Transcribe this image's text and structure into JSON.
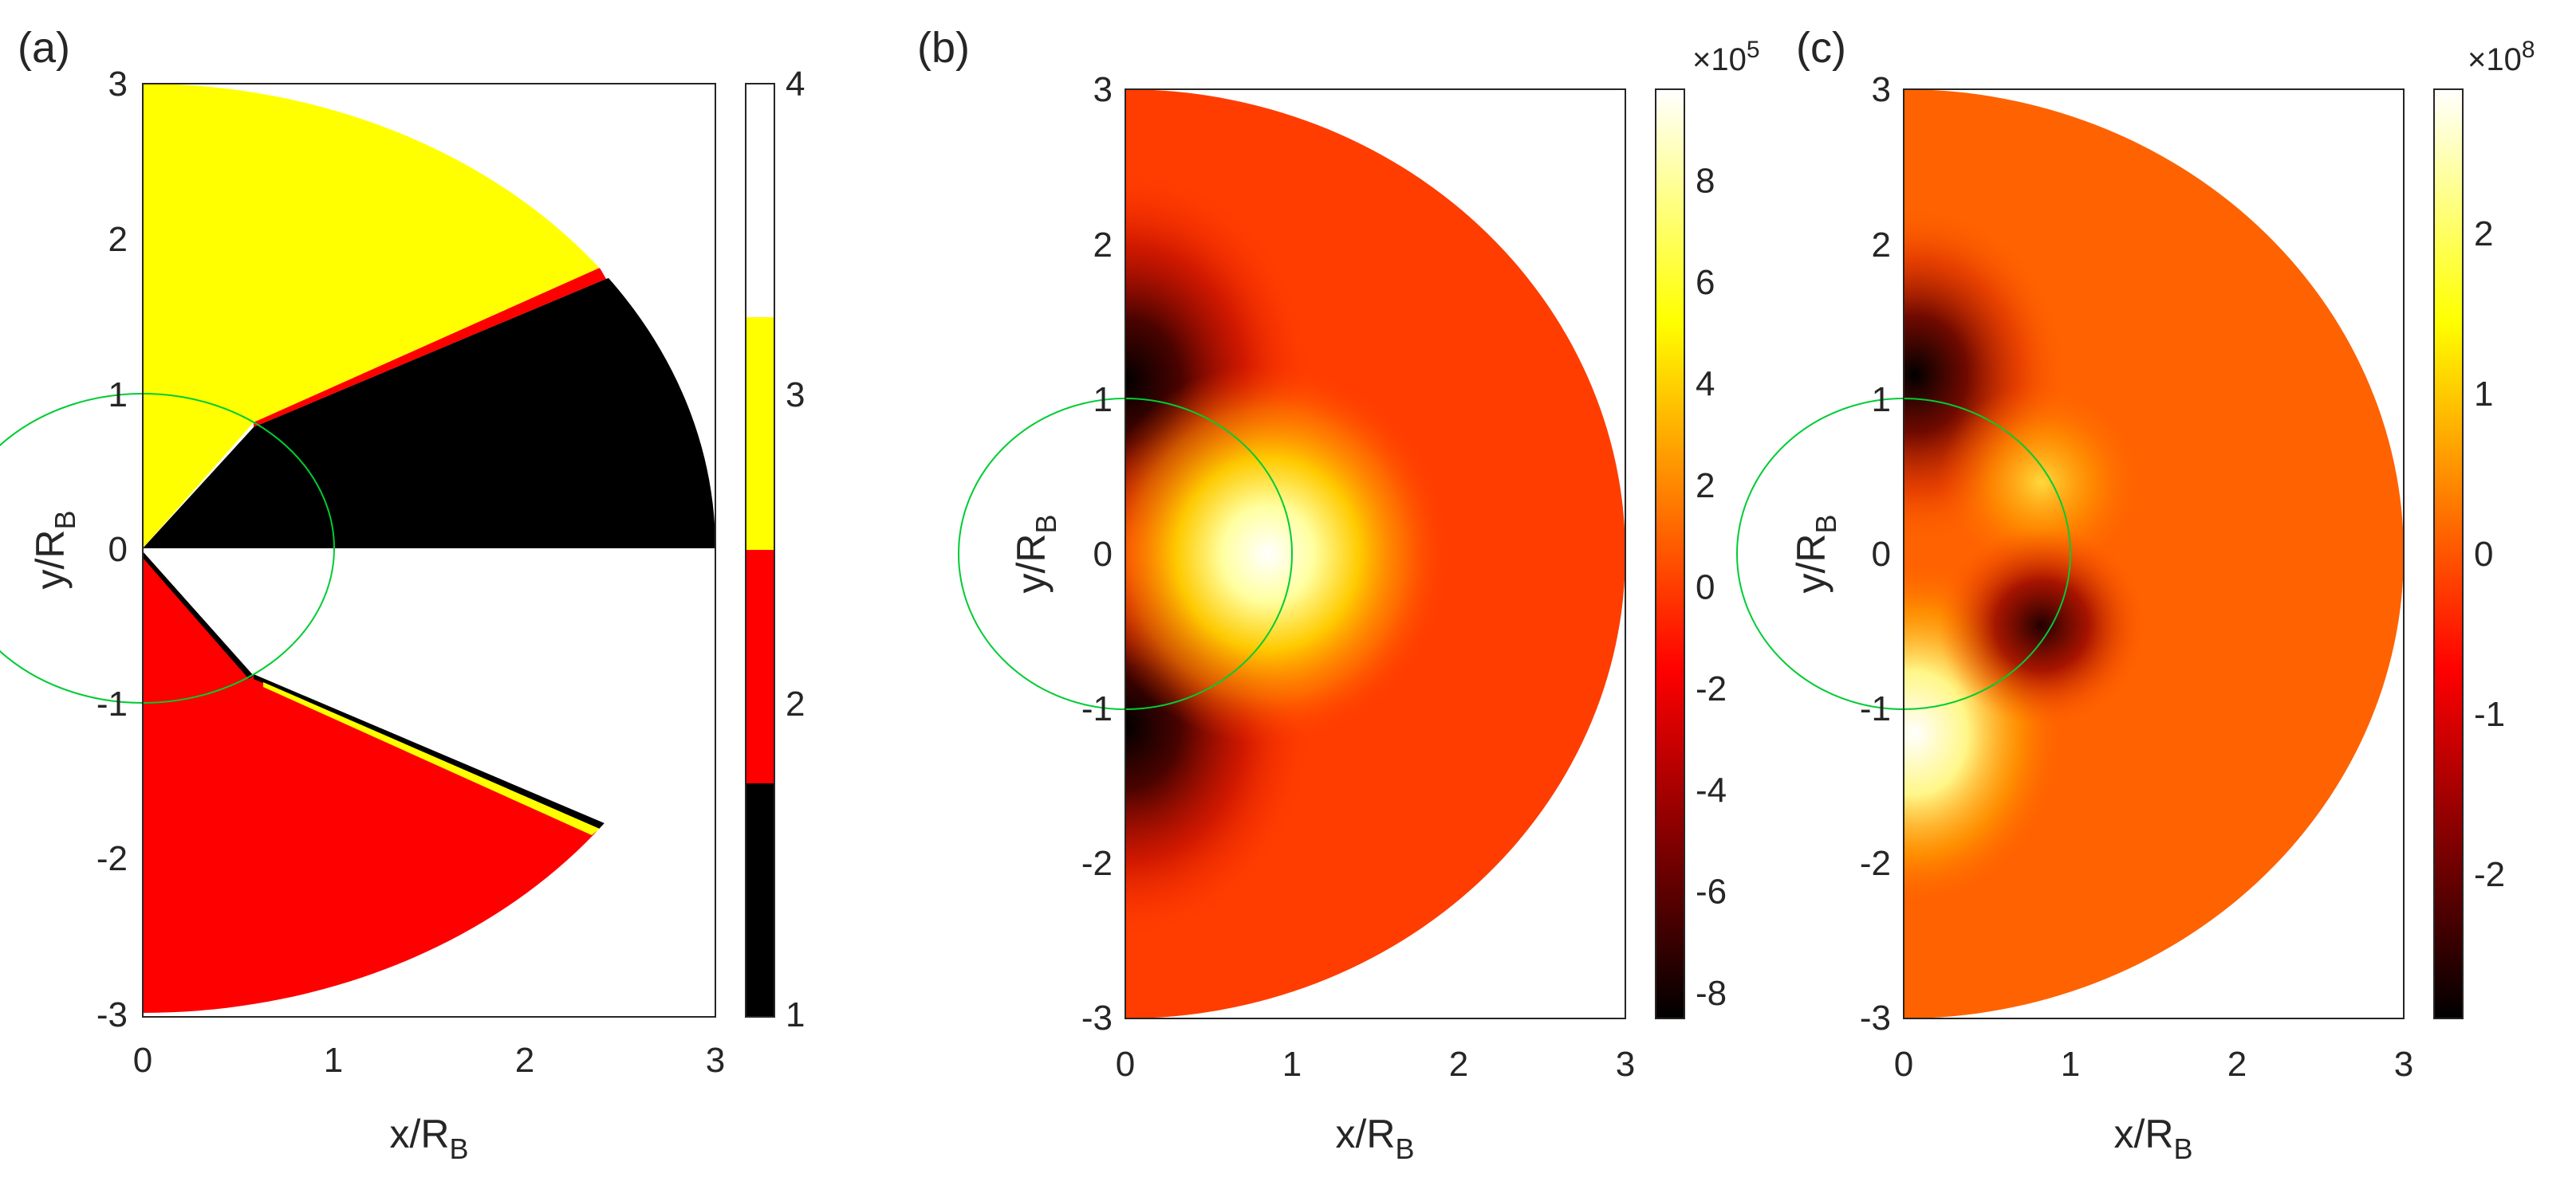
{
  "figure": {
    "panels": [
      {
        "label": "(a)",
        "xlabel_main": "x/R",
        "xlabel_sub": "B",
        "ylabel_main": "y/R",
        "ylabel_sub": "B",
        "x_ticks": [
          "0",
          "1",
          "2",
          "3"
        ],
        "y_ticks": [
          "-3",
          "-2",
          "-1",
          "0",
          "1",
          "2",
          "3"
        ],
        "colorbar_ticks": [
          "1",
          "2",
          "3",
          "4"
        ],
        "colorbar_exponent": ""
      },
      {
        "label": "(b)",
        "xlabel_main": "x/R",
        "xlabel_sub": "B",
        "ylabel_main": "y/R",
        "ylabel_sub": "B",
        "x_ticks": [
          "0",
          "1",
          "2",
          "3"
        ],
        "y_ticks": [
          "-3",
          "-2",
          "-1",
          "0",
          "1",
          "2",
          "3"
        ],
        "colorbar_ticks": [
          "-8",
          "-6",
          "-4",
          "-2",
          "0",
          "2",
          "4",
          "6",
          "8"
        ],
        "colorbar_exponent": "×10",
        "colorbar_exponent_power": "5"
      },
      {
        "label": "(c)",
        "xlabel_main": "x/R",
        "xlabel_sub": "B",
        "ylabel_main": "y/R",
        "ylabel_sub": "B",
        "x_ticks": [
          "0",
          "1",
          "2",
          "3"
        ],
        "y_ticks": [
          "-3",
          "-2",
          "-1",
          "0",
          "1",
          "2",
          "3"
        ],
        "colorbar_ticks": [
          "-2",
          "-1",
          "0",
          "1",
          "2"
        ],
        "colorbar_exponent": "×10",
        "colorbar_exponent_power": "8"
      }
    ]
  },
  "chart_data": [
    {
      "type": "heatmap",
      "panel": "(a)",
      "xlim": [
        0,
        3
      ],
      "ylim": [
        -3,
        3
      ],
      "domain": "half-disk x>=0, radius 3",
      "colormap": "discrete",
      "clim": [
        1,
        4
      ],
      "colorbar_levels": [
        {
          "value": 1,
          "color": "#000000"
        },
        {
          "value": 2,
          "color": "#ff0000"
        },
        {
          "value": 3,
          "color": "#ffff00"
        },
        {
          "value": 4,
          "color": "#ffffff"
        }
      ],
      "regions": [
        {
          "value": 3,
          "description": "upper sector above line from origin to (0.58,0.82) and beyond",
          "color": "#ffff00"
        },
        {
          "value": 1,
          "description": "upper wedge between ray angle 0 and ray through (0.58,0.82)",
          "color": "#000000"
        },
        {
          "value": 4,
          "description": "lower wedge below x-axis inside ring",
          "color": "#ffffff"
        },
        {
          "value": 2,
          "description": "lower sector below line from origin to (0.58,-0.82)",
          "color": "#ff0000"
        }
      ],
      "reference_circle": {
        "center": [
          0,
          0
        ],
        "radius": 1,
        "color": "#00cc33"
      }
    },
    {
      "type": "heatmap",
      "panel": "(b)",
      "xlim": [
        0,
        3
      ],
      "ylim": [
        -3,
        3
      ],
      "domain": "half-disk x>=0, radius 3",
      "colormap": "hot",
      "clim": [
        -8.5,
        9.8
      ],
      "scale_exponent": 5,
      "features": [
        {
          "x": 0.0,
          "y": 1.05,
          "value": -8.5
        },
        {
          "x": 0.0,
          "y": -1.05,
          "value": -8.5
        },
        {
          "x": 0.9,
          "y": 0.0,
          "value": 9.8
        }
      ],
      "reference_circle": {
        "center": [
          0,
          0
        ],
        "radius": 1,
        "color": "#00cc33"
      }
    },
    {
      "type": "heatmap",
      "panel": "(c)",
      "xlim": [
        0,
        3
      ],
      "ylim": [
        -3,
        3
      ],
      "domain": "half-disk x>=0, radius 3",
      "colormap": "hot",
      "clim": [
        -2.9,
        2.9
      ],
      "scale_exponent": 8,
      "features": [
        {
          "x": 0.05,
          "y": 1.05,
          "value": -2.9
        },
        {
          "x": 0.05,
          "y": -1.05,
          "value": 2.9
        },
        {
          "x": 0.8,
          "y": 0.45,
          "value": 1.6
        },
        {
          "x": 0.8,
          "y": -0.45,
          "value": -1.6
        }
      ],
      "reference_circle": {
        "center": [
          0,
          0
        ],
        "radius": 1,
        "color": "#00cc33"
      }
    }
  ]
}
